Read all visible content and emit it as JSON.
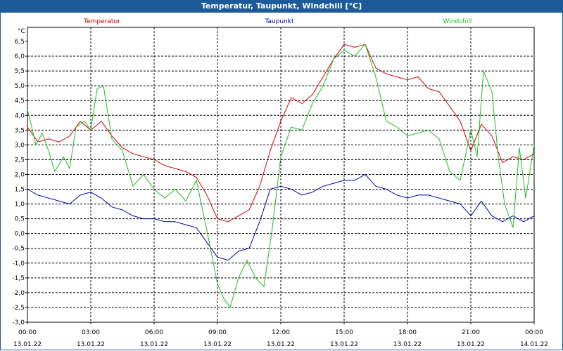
{
  "window": {
    "title": "Temperatur, Taupunkt, Windchill [°C]"
  },
  "chart_data": {
    "type": "line",
    "title": "Temperatur, Taupunkt, Windchill [°C]",
    "ylabel": "°C",
    "xlabel": "",
    "ylim": [
      -3.0,
      6.5
    ],
    "xlim": [
      0,
      24
    ],
    "grid": true,
    "y_ticks": [
      6.5,
      6.0,
      5.5,
      5.0,
      4.5,
      4.0,
      3.5,
      3.0,
      2.5,
      2.0,
      1.5,
      1.0,
      0.5,
      0.0,
      -0.5,
      -1.0,
      -1.5,
      -2.0,
      -2.5,
      -3.0
    ],
    "y_tick_labels": [
      "6,5",
      "6,0",
      "5,5",
      "5,0",
      "4,5",
      "4,0",
      "3,5",
      "3,0",
      "2,5",
      "2,0",
      "1,5",
      "1,0",
      "0,5",
      "0,0",
      "-0,5",
      "-1,0",
      "-1,5",
      "-2,0",
      "-2,5",
      "-3,0"
    ],
    "x_ticks": [
      {
        "hour": 0,
        "time": "00:00",
        "date": "13.01.22"
      },
      {
        "hour": 3,
        "time": "03:00",
        "date": "13.01.22"
      },
      {
        "hour": 6,
        "time": "06:00",
        "date": "13.01.22"
      },
      {
        "hour": 9,
        "time": "09:00",
        "date": "13.01.22"
      },
      {
        "hour": 12,
        "time": "12:00",
        "date": "13.01.22"
      },
      {
        "hour": 15,
        "time": "15:00",
        "date": "13.01.22"
      },
      {
        "hour": 18,
        "time": "18:00",
        "date": "13.01.22"
      },
      {
        "hour": 21,
        "time": "21:00",
        "date": "13.01.22"
      },
      {
        "hour": 24,
        "time": "00:00",
        "date": "14.01.22"
      }
    ],
    "series": [
      {
        "name": "Temperatur",
        "color": "#cc0000",
        "legend": "left",
        "x": [
          0,
          0.5,
          1,
          1.5,
          2,
          2.5,
          3,
          3.5,
          4,
          4.5,
          5,
          5.5,
          6,
          6.5,
          7,
          7.5,
          8,
          8.5,
          9,
          9.5,
          10,
          10.5,
          11,
          11.5,
          12,
          12.5,
          13,
          13.5,
          14,
          14.5,
          15,
          15.5,
          16,
          16.5,
          17,
          17.5,
          18,
          18.5,
          19,
          19.5,
          20,
          20.5,
          21,
          21.5,
          22,
          22.5,
          23,
          23.5,
          24
        ],
        "values": [
          3.6,
          3.1,
          3.2,
          3.1,
          3.3,
          3.8,
          3.5,
          3.8,
          3.3,
          2.9,
          2.7,
          2.6,
          2.5,
          2.3,
          2.2,
          2.1,
          1.9,
          1.3,
          0.5,
          0.4,
          0.6,
          0.8,
          1.6,
          2.8,
          3.8,
          4.6,
          4.4,
          4.7,
          5.3,
          5.9,
          6.4,
          6.3,
          6.4,
          5.6,
          5.4,
          5.3,
          5.2,
          5.3,
          4.9,
          4.8,
          4.3,
          3.8,
          2.8,
          3.7,
          3.3,
          2.4,
          2.6,
          2.5,
          2.7
        ]
      },
      {
        "name": "Taupunkt",
        "color": "#0000aa",
        "legend": "center",
        "x": [
          0,
          0.5,
          1,
          1.5,
          2,
          2.5,
          3,
          3.5,
          4,
          4.5,
          5,
          5.5,
          6,
          6.5,
          7,
          7.5,
          8,
          8.5,
          9,
          9.5,
          10,
          10.5,
          11,
          11.5,
          12,
          12.5,
          13,
          13.5,
          14,
          14.5,
          15,
          15.5,
          16,
          16.5,
          17,
          17.5,
          18,
          18.5,
          19,
          19.5,
          20,
          20.5,
          21,
          21.5,
          22,
          22.5,
          23,
          23.5,
          24
        ],
        "values": [
          1.5,
          1.3,
          1.2,
          1.1,
          1.0,
          1.3,
          1.4,
          1.2,
          0.9,
          0.8,
          0.6,
          0.5,
          0.5,
          0.4,
          0.4,
          0.3,
          0.2,
          -0.3,
          -0.8,
          -0.9,
          -0.6,
          -0.5,
          0.4,
          1.5,
          1.6,
          1.5,
          1.3,
          1.4,
          1.6,
          1.7,
          1.8,
          1.8,
          2.0,
          1.6,
          1.5,
          1.3,
          1.2,
          1.3,
          1.3,
          1.2,
          1.1,
          1.0,
          0.6,
          1.1,
          0.6,
          0.4,
          0.6,
          0.4,
          0.6
        ]
      },
      {
        "name": "Windchill",
        "color": "#22bb22",
        "legend": "right",
        "x": [
          0,
          0.4,
          0.7,
          1,
          1.3,
          1.7,
          2,
          2.3,
          2.7,
          3,
          3.3,
          3.6,
          4,
          4.5,
          5,
          5.5,
          6,
          6.5,
          7,
          7.5,
          8,
          8.5,
          9,
          9.3,
          9.6,
          10,
          10.4,
          10.8,
          11.2,
          11.6,
          12,
          12.5,
          13,
          13.5,
          14,
          14.5,
          15,
          15.5,
          16,
          16.5,
          17,
          17.5,
          18,
          18.5,
          19,
          19.5,
          20,
          20.5,
          21,
          21.3,
          21.6,
          22,
          22.3,
          22.6,
          23,
          23.3,
          23.6,
          24
        ],
        "values": [
          4.2,
          3.0,
          3.4,
          2.8,
          2.1,
          2.6,
          2.2,
          3.6,
          3.8,
          3.5,
          4.9,
          5.0,
          3.2,
          2.8,
          1.6,
          2.0,
          1.5,
          1.2,
          1.5,
          1.1,
          1.8,
          0.1,
          -1.7,
          -2.2,
          -2.5,
          -1.5,
          -0.9,
          -1.5,
          -1.8,
          0.2,
          2.6,
          3.6,
          3.5,
          4.4,
          5.0,
          5.9,
          6.2,
          6.0,
          6.4,
          5.3,
          3.8,
          3.6,
          3.3,
          3.4,
          3.5,
          3.2,
          2.1,
          1.8,
          3.5,
          2.6,
          5.5,
          4.8,
          2.6,
          1.0,
          0.2,
          2.9,
          1.2,
          3.0
        ]
      }
    ]
  }
}
